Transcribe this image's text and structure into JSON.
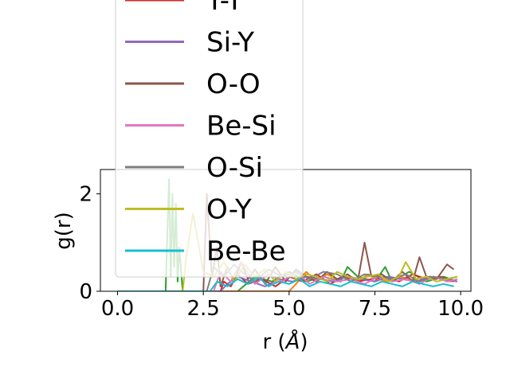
{
  "chart_data": {
    "type": "line",
    "title": "",
    "xlabel": "r ($\\AA$)",
    "ylabel": "g(r)",
    "xlim": [
      -0.5,
      10.3
    ],
    "ylim": [
      0,
      2.5
    ],
    "xticks": [
      0.0,
      2.5,
      5.0,
      7.5,
      10.0
    ],
    "xtick_labels": [
      "0.0",
      "2.5",
      "5.0",
      "7.5",
      "10.0"
    ],
    "yticks": [
      0,
      2
    ],
    "ytick_labels": [
      "0",
      "2"
    ],
    "grid": false,
    "legend_placement": "upper-left",
    "series": [
      {
        "name": "Y-Y",
        "color": "#d62728",
        "x": [
          0.0,
          3.0,
          3.1,
          3.3,
          3.5,
          3.8,
          4.2,
          4.6,
          5.0,
          5.4,
          5.8,
          6.2,
          6.6,
          7.0,
          7.4,
          7.8,
          8.2,
          8.6,
          9.0,
          9.4,
          9.8
        ],
        "y": [
          0.0,
          0.0,
          0.2,
          0.1,
          0.35,
          0.15,
          0.25,
          0.1,
          0.3,
          0.2,
          0.35,
          0.15,
          0.3,
          0.2,
          0.25,
          0.3,
          0.2,
          0.35,
          0.25,
          0.3,
          0.2
        ]
      },
      {
        "name": "Si-Y",
        "color": "#9467bd",
        "x": [
          0.0,
          3.0,
          3.2,
          3.5,
          3.9,
          4.3,
          4.7,
          5.1,
          5.5,
          5.9,
          6.3,
          6.7,
          7.1,
          7.5,
          7.9,
          8.3,
          8.7,
          9.1,
          9.5,
          9.9
        ],
        "y": [
          0.0,
          0.0,
          0.15,
          0.3,
          0.2,
          0.1,
          0.25,
          0.2,
          0.3,
          0.25,
          0.2,
          0.3,
          0.25,
          0.2,
          0.3,
          0.25,
          0.2,
          0.3,
          0.25,
          0.2
        ]
      },
      {
        "name": "O-O",
        "color": "#8c564b",
        "x": [
          0.0,
          2.5,
          2.6,
          2.75,
          2.9,
          3.0,
          3.2,
          3.4,
          3.6,
          3.8,
          4.0,
          4.3,
          4.6,
          4.9,
          5.2,
          5.5,
          5.8,
          6.1,
          6.4,
          6.7,
          7.0,
          7.2,
          7.4,
          7.7,
          8.0,
          8.3,
          8.6,
          8.8,
          9.0,
          9.3,
          9.6,
          9.8
        ],
        "y": [
          0.0,
          0.0,
          2.0,
          0.3,
          0.9,
          0.1,
          0.5,
          0.2,
          0.6,
          0.25,
          0.45,
          0.15,
          0.5,
          0.2,
          0.45,
          0.3,
          0.2,
          0.4,
          0.25,
          0.35,
          0.2,
          1.0,
          0.3,
          0.35,
          0.2,
          0.4,
          0.2,
          0.7,
          0.3,
          0.25,
          0.55,
          0.45
        ]
      },
      {
        "name": "Be-Si",
        "color": "#e377c2",
        "x": [
          0.0,
          2.8,
          3.0,
          3.3,
          3.6,
          4.0,
          4.4,
          4.8,
          5.2,
          5.6,
          6.0,
          6.4,
          6.8,
          7.2,
          7.6,
          8.0,
          8.4,
          8.8,
          9.2,
          9.6,
          9.9
        ],
        "y": [
          0.0,
          0.0,
          0.4,
          0.2,
          0.6,
          0.15,
          0.35,
          0.2,
          0.4,
          0.15,
          0.3,
          0.2,
          0.25,
          0.15,
          0.3,
          0.2,
          0.25,
          0.15,
          0.3,
          0.2,
          0.25
        ]
      },
      {
        "name": "O-Si",
        "color": "#7f7f7f",
        "x": [
          0.0,
          2.6,
          2.8,
          3.1,
          3.4,
          3.7,
          4.0,
          4.4,
          4.8,
          5.2,
          5.6,
          6.0,
          6.4,
          6.8,
          7.2,
          7.6,
          8.0,
          8.4,
          8.8,
          9.2,
          9.6,
          9.9
        ],
        "y": [
          0.0,
          0.0,
          0.5,
          0.3,
          0.55,
          0.35,
          0.2,
          0.45,
          0.3,
          0.4,
          0.25,
          0.4,
          0.35,
          0.2,
          0.35,
          0.3,
          0.25,
          0.35,
          0.2,
          0.3,
          0.25,
          0.3
        ]
      },
      {
        "name": "O-Y",
        "color": "#bcbd22",
        "x": [
          0.0,
          1.9,
          2.0,
          2.2,
          2.5,
          2.8,
          3.1,
          3.4,
          3.7,
          4.0,
          4.3,
          4.6,
          4.9,
          5.2,
          5.5,
          5.8,
          6.1,
          6.4,
          6.7,
          7.0,
          7.3,
          7.6,
          7.9,
          8.2,
          8.4,
          8.7,
          9.0,
          9.3,
          9.6,
          9.9
        ],
        "y": [
          0.0,
          0.0,
          0.7,
          1.6,
          0.4,
          0.3,
          0.6,
          0.2,
          0.55,
          0.3,
          0.45,
          0.2,
          0.4,
          0.25,
          0.35,
          0.3,
          0.2,
          0.4,
          0.3,
          0.25,
          0.3,
          0.35,
          0.2,
          0.3,
          0.6,
          0.25,
          0.3,
          0.2,
          0.25,
          0.3
        ]
      },
      {
        "name": "Be-Be",
        "color": "#17becf",
        "x": [
          0.0,
          2.7,
          2.9,
          3.2,
          3.5,
          3.8,
          4.1,
          4.4,
          4.7,
          5.0,
          5.3,
          5.6,
          5.9,
          6.2,
          6.5,
          6.8,
          7.1,
          7.4,
          7.7,
          8.0,
          8.3,
          8.6,
          8.9,
          9.2,
          9.5,
          9.8
        ],
        "y": [
          0.0,
          0.0,
          0.2,
          0.1,
          0.25,
          0.15,
          0.3,
          0.1,
          0.2,
          0.15,
          0.25,
          0.1,
          0.2,
          0.15,
          0.1,
          0.2,
          0.15,
          0.1,
          0.2,
          0.15,
          0.1,
          0.2,
          0.15,
          0.1,
          0.15,
          0.1
        ]
      },
      {
        "name": "",
        "color": "#2ca02c",
        "x": [
          0.0,
          1.4,
          1.5,
          1.55,
          1.6,
          1.65,
          1.7,
          1.75,
          1.8,
          1.9,
          3.5,
          4.0,
          4.5,
          5.0,
          5.5,
          6.0,
          6.5,
          6.7,
          7.0,
          7.5,
          7.8,
          8.0,
          8.5,
          9.0,
          9.5,
          9.9
        ],
        "y": [
          0.0,
          0.0,
          2.3,
          0.3,
          2.0,
          0.5,
          1.8,
          0.2,
          0.9,
          0.0,
          0.0,
          0.3,
          0.2,
          0.4,
          0.2,
          0.3,
          0.2,
          0.5,
          0.3,
          0.2,
          0.5,
          0.2,
          0.4,
          0.2,
          0.3,
          0.2
        ]
      },
      {
        "name": "",
        "color": "#ff7f0e",
        "x": [
          0.0,
          5.0,
          5.2,
          5.5,
          5.8,
          6.1,
          6.4,
          6.7,
          7.0,
          7.3,
          7.6,
          7.9,
          8.2,
          8.5,
          8.8,
          9.1,
          9.4,
          9.7,
          9.9
        ],
        "y": [
          0.0,
          0.0,
          0.15,
          0.4,
          0.2,
          0.35,
          0.25,
          0.3,
          0.2,
          0.35,
          0.25,
          0.2,
          0.3,
          0.25,
          0.2,
          0.3,
          0.25,
          0.2,
          0.25
        ]
      }
    ]
  }
}
